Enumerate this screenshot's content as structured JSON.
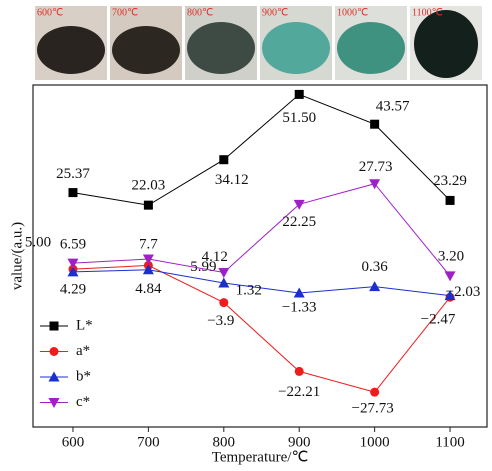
{
  "samples": [
    "600℃",
    "700℃",
    "800℃",
    "900℃",
    "1000℃",
    "1100℃"
  ],
  "chart_data": {
    "type": "line",
    "x_label": "Temperature/℃",
    "y_label": "value/(a.u.)",
    "x": [
      600,
      700,
      800,
      900,
      1000,
      1100
    ],
    "xlim": [
      547,
      1149
    ],
    "xticks": [
      600,
      700,
      800,
      900,
      1000,
      1100
    ],
    "ylim": [
      -37,
      54
    ],
    "legend": "lower left",
    "series": [
      {
        "name": "L*",
        "color": "#000000",
        "marker": "square",
        "values": [
          25.37,
          22.03,
          34.12,
          51.5,
          43.57,
          23.29
        ],
        "value_labels": [
          "25.37",
          "22.03",
          "34.12",
          "51.50",
          "43.57",
          "23.29"
        ]
      },
      {
        "name": "a*",
        "color": "#ee1c1c",
        "marker": "circle",
        "values": [
          5.0,
          5.99,
          -3.9,
          -22.21,
          -27.73,
          -2.47
        ],
        "value_labels": [
          "5.00",
          "5.99",
          "−3.9",
          "−22.21",
          "−27.73",
          "−2.47"
        ]
      },
      {
        "name": "b*",
        "color": "#1c2fcc",
        "marker": "triangle-up",
        "values": [
          4.29,
          4.84,
          1.32,
          -1.33,
          0.36,
          -2.03
        ],
        "value_labels": [
          "4.29",
          "4.84",
          "1.32",
          "−1.33",
          "0.36",
          "−2.03"
        ]
      },
      {
        "name": "c*",
        "color": "#a020c8",
        "marker": "triangle-down",
        "values": [
          6.59,
          7.7,
          4.12,
          22.25,
          27.73,
          3.2
        ],
        "value_labels": [
          "6.59",
          "7.7",
          "4.12",
          "22.25",
          "27.73",
          "3.20"
        ]
      }
    ]
  }
}
